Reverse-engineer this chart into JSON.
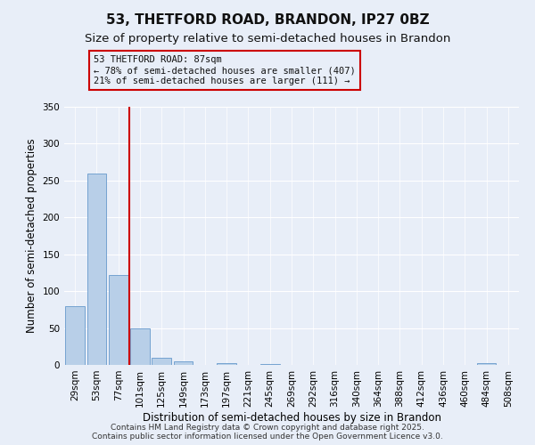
{
  "title": "53, THETFORD ROAD, BRANDON, IP27 0BZ",
  "subtitle": "Size of property relative to semi-detached houses in Brandon",
  "xlabel": "Distribution of semi-detached houses by size in Brandon",
  "ylabel": "Number of semi-detached properties",
  "categories": [
    "29sqm",
    "53sqm",
    "77sqm",
    "101sqm",
    "125sqm",
    "149sqm",
    "173sqm",
    "197sqm",
    "221sqm",
    "245sqm",
    "269sqm",
    "292sqm",
    "316sqm",
    "340sqm",
    "364sqm",
    "388sqm",
    "412sqm",
    "436sqm",
    "460sqm",
    "484sqm",
    "508sqm"
  ],
  "values": [
    80,
    260,
    122,
    49,
    10,
    5,
    0,
    2,
    0,
    1,
    0,
    0,
    0,
    0,
    0,
    0,
    0,
    0,
    0,
    2,
    0
  ],
  "bar_color": "#b8cfe8",
  "bar_edge_color": "#6699cc",
  "property_line_color": "#cc0000",
  "property_line_x": 2.5,
  "annotation_line1": "53 THETFORD ROAD: 87sqm",
  "annotation_line2": "← 78% of semi-detached houses are smaller (407)",
  "annotation_line3": "21% of semi-detached houses are larger (111) →",
  "annotation_box_color": "#cc0000",
  "background_color": "#e8eef8",
  "plot_bg_color": "#e8eef8",
  "ylim": [
    0,
    350
  ],
  "yticks": [
    0,
    50,
    100,
    150,
    200,
    250,
    300,
    350
  ],
  "footer_text": "Contains HM Land Registry data © Crown copyright and database right 2025.\nContains public sector information licensed under the Open Government Licence v3.0.",
  "title_fontsize": 11,
  "subtitle_fontsize": 9.5,
  "axis_label_fontsize": 8.5,
  "tick_fontsize": 7.5,
  "annotation_fontsize": 7.5,
  "footer_fontsize": 6.5
}
